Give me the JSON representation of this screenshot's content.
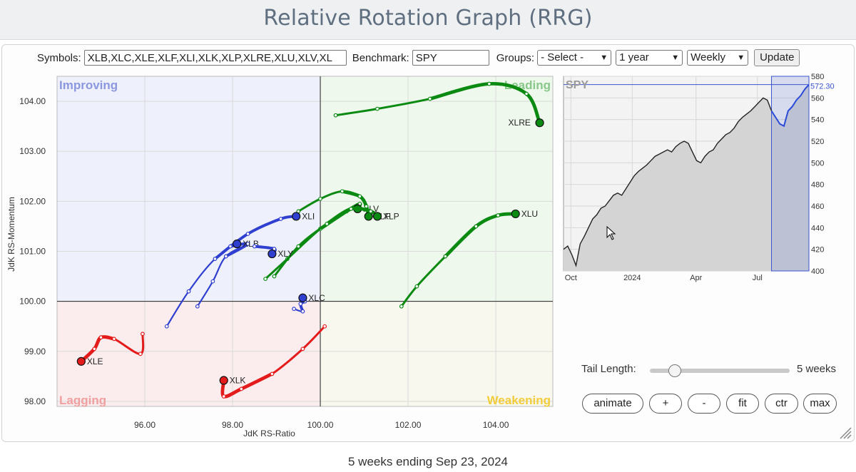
{
  "page": {
    "title": "Relative Rotation Graph (RRG)",
    "footer": "5 weeks ending Sep 23, 2024"
  },
  "controls": {
    "symbols_label": "Symbols:",
    "symbols_value": "XLB,XLC,XLE,XLF,XLI,XLK,XLP,XLRE,XLU,XLV,XL",
    "benchmark_label": "Benchmark:",
    "benchmark_value": "SPY",
    "groups_label": "Groups:",
    "groups_value": "- Select -",
    "period_value": "1 year",
    "interval_value": "Weekly",
    "update_label": "Update"
  },
  "colors": {
    "improving": "#2f3fd0",
    "leading": "#0b8a12",
    "lagging": "#e41b1b",
    "weakening": "#0b8a12"
  },
  "chart_data": [
    {
      "type": "scatter",
      "name": "RRG",
      "xlabel": "JdK RS-Ratio",
      "ylabel": "JdK RS-Momentum",
      "xlim": [
        94.0,
        105.3
      ],
      "ylim": [
        97.9,
        104.5
      ],
      "x_ticks": [
        "96.00",
        "98.00",
        "100.00",
        "102.00",
        "104.00"
      ],
      "y_ticks": [
        "98.00",
        "99.00",
        "100.00",
        "101.00",
        "102.00",
        "103.00",
        "104.00"
      ],
      "quadrants": {
        "improving": "Improving",
        "leading": "Leading",
        "lagging": "Lagging",
        "weakening": "Weakening"
      },
      "grid": true,
      "series": [
        {
          "label": "XLRE",
          "quadrant": "leading",
          "points": [
            [
              100.35,
              103.72
            ],
            [
              101.3,
              103.85
            ],
            [
              102.5,
              104.05
            ],
            [
              103.85,
              104.35
            ],
            [
              104.7,
              104.15
            ],
            [
              105.0,
              103.57
            ]
          ]
        },
        {
          "label": "XLU",
          "quadrant": "leading",
          "points": [
            [
              101.85,
              99.9
            ],
            [
              102.2,
              100.3
            ],
            [
              102.85,
              100.9
            ],
            [
              103.55,
              101.5
            ],
            [
              104.05,
              101.72
            ],
            [
              104.45,
              101.75
            ]
          ]
        },
        {
          "label": "XLV",
          "quadrant": "leading",
          "points": [
            [
              98.75,
              100.45
            ],
            [
              99.25,
              100.85
            ],
            [
              100.0,
              101.45
            ],
            [
              100.6,
              101.8
            ],
            [
              100.9,
              101.95
            ],
            [
              100.85,
              101.85
            ]
          ]
        },
        {
          "label": "XLF",
          "quadrant": "leading",
          "points": [
            [
              99.5,
              101.8
            ],
            [
              100.0,
              102.05
            ],
            [
              100.5,
              102.2
            ],
            [
              100.9,
              102.1
            ],
            [
              101.05,
              101.9
            ],
            [
              101.1,
              101.7
            ]
          ]
        },
        {
          "label": "XLP",
          "quadrant": "leading",
          "points": [
            [
              98.95,
              100.5
            ],
            [
              99.5,
              101.1
            ],
            [
              100.15,
              101.55
            ],
            [
              100.7,
              101.85
            ],
            [
              101.15,
              101.8
            ],
            [
              101.3,
              101.7
            ]
          ]
        },
        {
          "label": "XLI",
          "quadrant": "improving",
          "points": [
            [
              96.5,
              99.5
            ],
            [
              97.0,
              100.2
            ],
            [
              97.6,
              100.85
            ],
            [
              98.35,
              101.35
            ],
            [
              99.1,
              101.65
            ],
            [
              99.45,
              101.7
            ]
          ]
        },
        {
          "label": "XLB",
          "quadrant": "improving",
          "points": [
            [
              97.2,
              99.9
            ],
            [
              97.55,
              100.4
            ],
            [
              97.85,
              100.9
            ],
            [
              98.35,
              101.15
            ],
            [
              97.95,
              101.1
            ],
            [
              98.1,
              101.15
            ]
          ]
        },
        {
          "label": "XLY",
          "quadrant": "improving",
          "points": [
            [
              98.5,
              101.1
            ],
            [
              98.95,
              101.05
            ],
            [
              98.9,
              100.95
            ]
          ]
        },
        {
          "label": "XLC",
          "quadrant": "improving",
          "points": [
            [
              99.4,
              99.85
            ],
            [
              99.6,
              99.8
            ],
            [
              99.55,
              99.95
            ],
            [
              99.65,
              100.0
            ],
            [
              99.6,
              100.07
            ]
          ]
        },
        {
          "label": "XLE",
          "quadrant": "lagging",
          "points": [
            [
              95.95,
              99.35
            ],
            [
              95.9,
              98.95
            ],
            [
              95.3,
              99.25
            ],
            [
              95.0,
              99.28
            ],
            [
              94.85,
              99.05
            ],
            [
              94.55,
              98.8
            ]
          ]
        },
        {
          "label": "XLK",
          "quadrant": "lagging",
          "points": [
            [
              100.1,
              99.5
            ],
            [
              99.6,
              99.05
            ],
            [
              98.9,
              98.55
            ],
            [
              98.2,
              98.25
            ],
            [
              97.8,
              98.1
            ],
            [
              97.8,
              98.42
            ]
          ]
        }
      ]
    },
    {
      "type": "line",
      "name": "SPY",
      "series_label": "SPY",
      "last_value": "572.30",
      "ylim": [
        400,
        580
      ],
      "y_ticks": [
        "580",
        "560",
        "540",
        "520",
        "500",
        "480",
        "460",
        "440",
        "420",
        "400"
      ],
      "x_ticks": [
        "Oct",
        "2024",
        "Apr",
        "Jul"
      ],
      "values": [
        420,
        423,
        415,
        405,
        425,
        432,
        440,
        448,
        452,
        458,
        460,
        465,
        470,
        472,
        470,
        476,
        482,
        488,
        492,
        495,
        498,
        502,
        506,
        508,
        510,
        512,
        510,
        515,
        518,
        520,
        518,
        510,
        502,
        500,
        506,
        510,
        512,
        518,
        522,
        526,
        528,
        532,
        538,
        542,
        545,
        548,
        552,
        556,
        560,
        558,
        548,
        542,
        536,
        534,
        548,
        552,
        558,
        562,
        568,
        572.3
      ]
    }
  ],
  "side_controls": {
    "tail_length_label": "Tail Length:",
    "tail_length_value": "5 weeks",
    "tail_length_fraction": 0.18,
    "buttons": [
      "animate",
      "+",
      "-",
      "fit",
      "ctr",
      "max"
    ]
  }
}
